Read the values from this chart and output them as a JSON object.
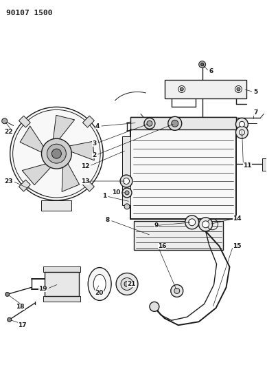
{
  "title_text": "90107 1500",
  "bg_color": "#ffffff",
  "line_color": "#1a1a1a",
  "figsize": [
    3.89,
    5.33
  ],
  "dpi": 100,
  "label_fontsize": 6.5
}
